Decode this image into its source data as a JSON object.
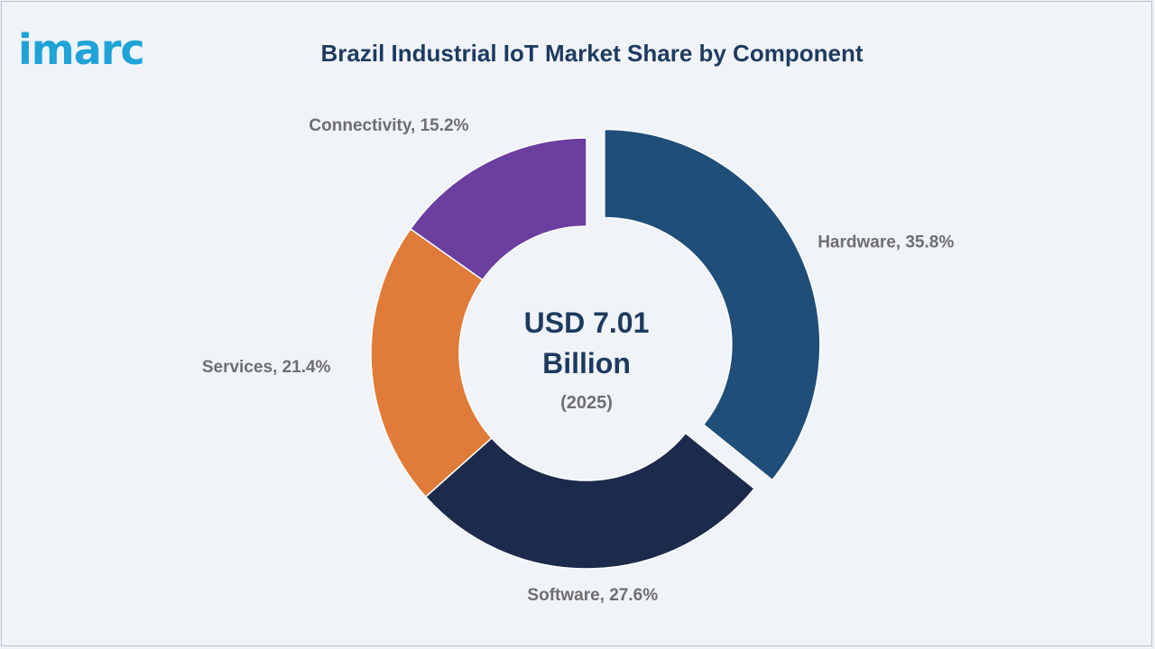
{
  "logo_text": "imarc",
  "chart_data": {
    "type": "pie",
    "title": "Brazil Industrial IoT Market Share by Component",
    "center_value": "USD 7.01 Billion",
    "center_value_line1": "USD 7.01",
    "center_value_line2": "Billion",
    "center_year": "(2025)",
    "slices": [
      {
        "name": "Hardware",
        "value": 35.8,
        "label": "Hardware, 35.8%",
        "color": "#1f4e79",
        "exploded": true
      },
      {
        "name": "Software",
        "value": 27.6,
        "label": "Software, 27.6%",
        "color": "#1c2b4c",
        "exploded": false
      },
      {
        "name": "Services",
        "value": 21.4,
        "label": "Services, 21.4%",
        "color": "#e07b39",
        "exploded": false
      },
      {
        "name": "Connectivity",
        "value": 15.2,
        "label": "Connectivity, 15.2%",
        "color": "#6b3fa0",
        "exploded": false
      }
    ]
  }
}
